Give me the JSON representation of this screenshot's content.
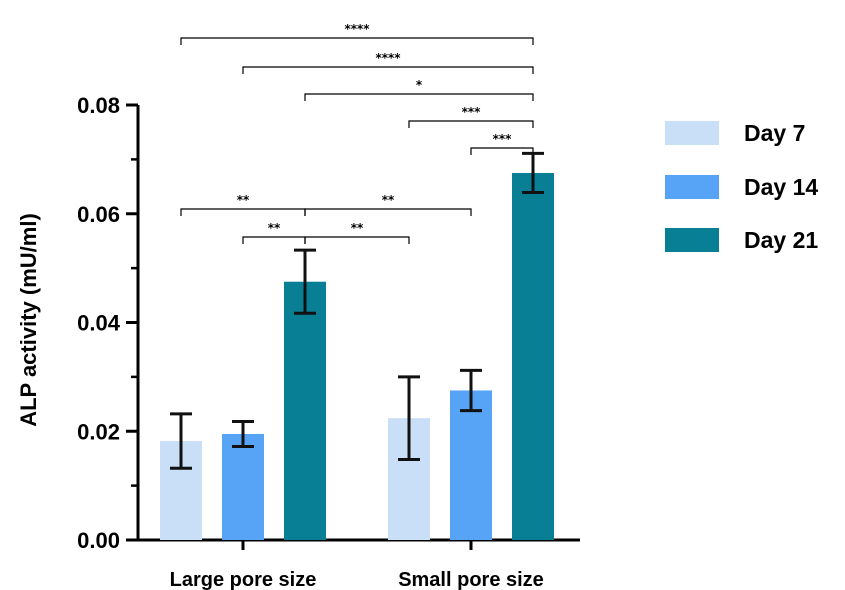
{
  "chart_data": {
    "type": "bar",
    "ylabel": "ALP activity (mU/ml)",
    "xlabel": "",
    "ylim": [
      0,
      0.08
    ],
    "yticks": [
      "0.00",
      "0.02",
      "0.04",
      "0.06",
      "0.08"
    ],
    "categories": [
      "Large pore size",
      "Small pore size"
    ],
    "series": [
      {
        "name": "Day 7",
        "color": "#c9def7",
        "values": [
          0.0182,
          0.0224
        ],
        "errors": [
          0.005,
          0.0076
        ]
      },
      {
        "name": "Day 14",
        "color": "#57a3f5",
        "values": [
          0.0195,
          0.0275
        ],
        "errors": [
          0.0023,
          0.0037
        ]
      },
      {
        "name": "Day 21",
        "color": "#087f95",
        "values": [
          0.0475,
          0.0675
        ],
        "errors": [
          0.0058,
          0.0036
        ]
      }
    ],
    "legend_position": "right",
    "significance": [
      {
        "from": [
          0,
          0
        ],
        "to": [
          1,
          2
        ],
        "label": "****"
      },
      {
        "from": [
          0,
          1
        ],
        "to": [
          1,
          2
        ],
        "label": "****"
      },
      {
        "from": [
          0,
          2
        ],
        "to": [
          1,
          2
        ],
        "label": "*"
      },
      {
        "from": [
          1,
          0
        ],
        "to": [
          1,
          2
        ],
        "label": "***"
      },
      {
        "from": [
          1,
          1
        ],
        "to": [
          1,
          2
        ],
        "label": "***"
      },
      {
        "from": [
          0,
          0
        ],
        "to": [
          0,
          2
        ],
        "label": "**"
      },
      {
        "from": [
          0,
          1
        ],
        "to": [
          0,
          2
        ],
        "label": "**"
      },
      {
        "from": [
          0,
          2
        ],
        "to": [
          1,
          1
        ],
        "label": "**"
      },
      {
        "from": [
          0,
          2
        ],
        "to": [
          1,
          0
        ],
        "label": "**"
      }
    ]
  }
}
